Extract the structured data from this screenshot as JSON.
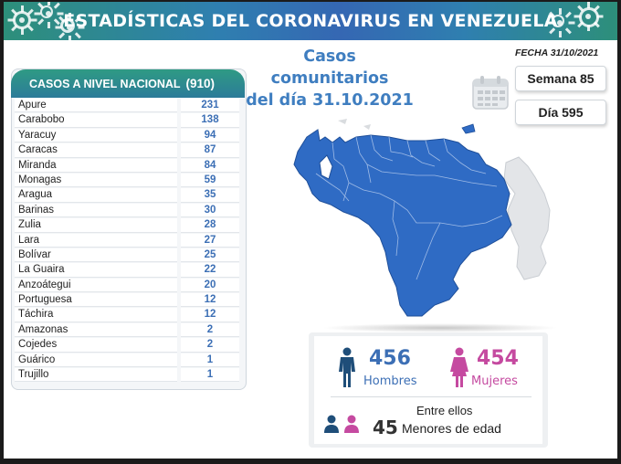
{
  "header": {
    "title": "ESTADÍSTICAS DEL CORONAVIRUS EN VENEZUELA",
    "subtitle_line1": "Casos comunitarios",
    "subtitle_line2": "del día 31.10.2021",
    "fecha": "FECHA 31/10/2021"
  },
  "national": {
    "heading": "CASOS A NIVEL NACIONAL",
    "total": "(910)",
    "rows": [
      {
        "state": "Apure",
        "cases": "231"
      },
      {
        "state": "Carabobo",
        "cases": "138"
      },
      {
        "state": "Yaracuy",
        "cases": "94"
      },
      {
        "state": "Caracas",
        "cases": "87"
      },
      {
        "state": "Miranda",
        "cases": "84"
      },
      {
        "state": "Monagas",
        "cases": "59"
      },
      {
        "state": "Aragua",
        "cases": "35"
      },
      {
        "state": "Barinas",
        "cases": "30"
      },
      {
        "state": "Zulia",
        "cases": "28"
      },
      {
        "state": "Lara",
        "cases": "27"
      },
      {
        "state": "Bolívar",
        "cases": "25"
      },
      {
        "state": "La Guaira",
        "cases": "22"
      },
      {
        "state": "Anzoátegui",
        "cases": "20"
      },
      {
        "state": "Portuguesa",
        "cases": "12"
      },
      {
        "state": "Táchira",
        "cases": "12"
      },
      {
        "state": "Amazonas",
        "cases": "2"
      },
      {
        "state": "Cojedes",
        "cases": "2"
      },
      {
        "state": "Guárico",
        "cases": "1"
      },
      {
        "state": "Trujillo",
        "cases": "1"
      }
    ]
  },
  "side": {
    "semana": "Semana 85",
    "dia": "Día 595"
  },
  "stats": {
    "hombres_count": "456",
    "hombres_label": "Hombres",
    "mujeres_count": "454",
    "mujeres_label": "Mujeres",
    "entre_label": "Entre ellos",
    "menores_count": "45",
    "menores_label": "Menores de edad"
  },
  "colors": {
    "map_blue": "#2f6bc4",
    "accent_blue": "#3c6fb5",
    "male": "#1f4e79",
    "female": "#c54aa0",
    "banner_teal": "#2d8f7a"
  },
  "icons": [
    "virus-icon",
    "calendar-icon",
    "male-icon",
    "female-icon",
    "child-male-icon",
    "child-female-icon"
  ]
}
